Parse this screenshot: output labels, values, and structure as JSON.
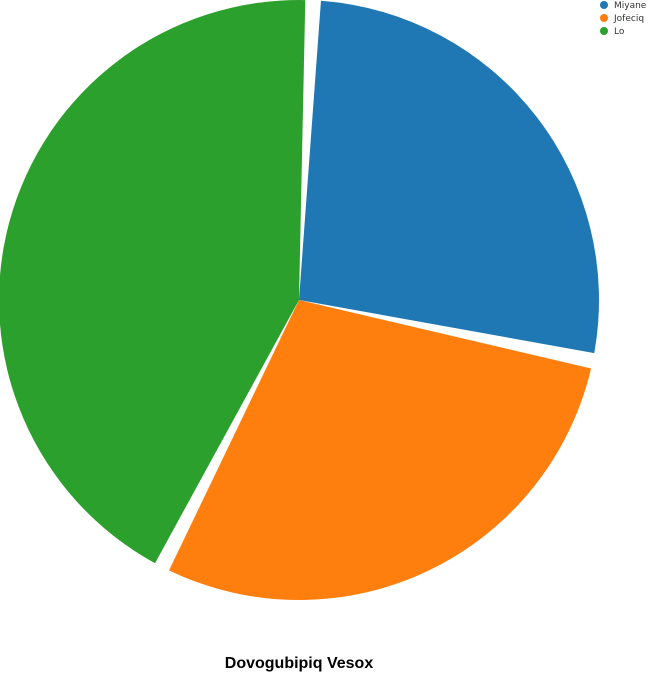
{
  "chart_data": {
    "type": "pie",
    "title": "Dovogubipiq Vesox",
    "legend_position": "top-right",
    "slices": [
      {
        "label": "Miyane",
        "value": 27.5,
        "color": "#1f77b4"
      },
      {
        "label": "Jofeciq",
        "value": 29.3,
        "color": "#ff7f0e"
      },
      {
        "label": "Lo",
        "value": 43.2,
        "color": "#2ca02c"
      }
    ]
  }
}
